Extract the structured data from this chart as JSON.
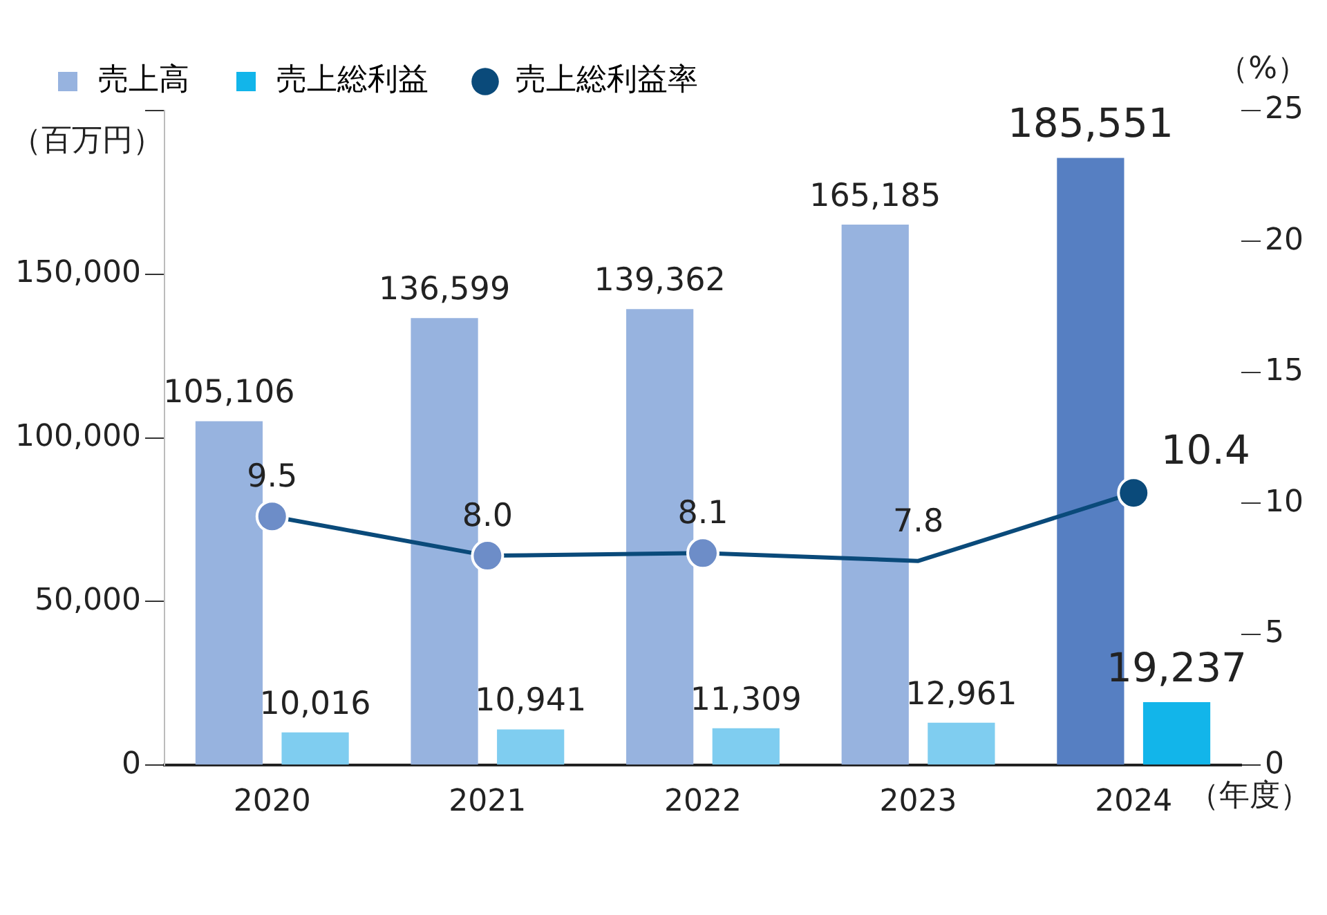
{
  "chart_data": {
    "type": "bar",
    "categories": [
      "2020",
      "2021",
      "2022",
      "2023",
      "2024"
    ],
    "series": [
      {
        "name": "売上高",
        "color": "#97b3df",
        "colors": [
          "#97b3df",
          "#97b3df",
          "#97b3df",
          "#97b3df",
          "#567fc2"
        ],
        "values": [
          105106,
          136599,
          139362,
          165185,
          185551
        ],
        "value_labels": [
          "105,106",
          "136,599",
          "139,362",
          "165,185",
          "185,551"
        ]
      },
      {
        "name": "売上総利益",
        "color": "#12b5ea",
        "colors": [
          "#7fcdf0",
          "#7fcdf0",
          "#7fcdf0",
          "#7fcdf0",
          "#12b5ea"
        ],
        "values": [
          10016,
          10941,
          11309,
          12961,
          19237
        ],
        "value_labels": [
          "10,016",
          "10,941",
          "11,309",
          "12,961",
          "19,237"
        ]
      },
      {
        "name": "売上総利益率",
        "type": "line",
        "axis": "y2",
        "color": "#0a4a7a",
        "colors": [
          "#6d8dc8",
          "#6d8dc8",
          "#6d8dc8",
          null,
          "#0a4a7a"
        ],
        "marker": "circle",
        "values": [
          9.5,
          8.0,
          8.1,
          7.8,
          10.4
        ],
        "value_labels": [
          "9.5",
          "8.0",
          "8.1",
          "7.8",
          "10.4"
        ]
      }
    ],
    "ylabel": "（百万円）",
    "y2label": "（%）",
    "xlabel": "（年度）",
    "ylim": [
      0,
      200000
    ],
    "yticks": [
      0,
      {
        "value": 50000,
        "label": "50,000"
      },
      {
        "value": 100000,
        "label": "100,000"
      },
      {
        "value": 150000,
        "label": "150,000"
      },
      {
        "value": 200000,
        "label": null
      }
    ],
    "y2lim": [
      0,
      25
    ],
    "y2ticks": [
      0,
      5,
      10,
      15,
      20,
      25
    ],
    "legend": "top left",
    "grid": false
  }
}
